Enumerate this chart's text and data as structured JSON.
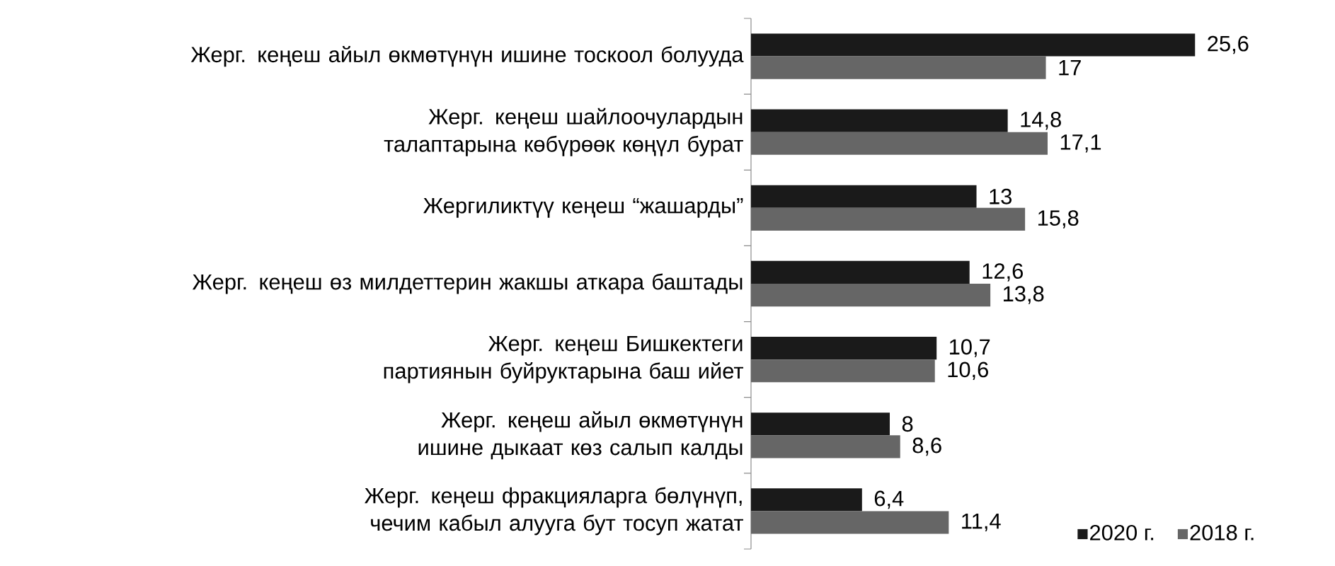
{
  "chart_data": {
    "type": "bar",
    "orientation": "horizontal",
    "categories": [
      "Жерг. кеңеш айыл өкмөтүнүн ишине тоскоол болууда",
      "Жерг. кеңеш шайлоочулардын талаптарына көбүрөөк көңүл бурат",
      "Жергиликтүү кеңеш “жашарды”",
      "Жерг. кеңеш өз милдеттерин жакшы аткара баштады",
      "Жерг. кеңеш Бишкектеги партиянын буйруктарына баш ийет",
      "Жерг. кеңеш айыл өкмөтүнүн ишине дыкаат көз салып калды",
      "Жерг. кеңеш фракцияларга бөлүнүп, чечим кабыл алууга бут тосуп жатат"
    ],
    "series": [
      {
        "name": "2020 г.",
        "color": "#1a1a1a",
        "values": [
          25.6,
          14.8,
          13,
          12.6,
          10.7,
          8,
          6.4
        ],
        "value_labels": [
          "25,6",
          "14,8",
          "13",
          "12,6",
          "10,7",
          "8",
          "6,4"
        ]
      },
      {
        "name": "2018 г.",
        "color": "#666666",
        "values": [
          17,
          17.1,
          15.8,
          13.8,
          10.6,
          8.6,
          11.4
        ],
        "value_labels": [
          "17",
          "17,1",
          "15,8",
          "13,8",
          "10,6",
          "8,6",
          "11,4"
        ]
      }
    ],
    "legend": "bottom right"
  }
}
